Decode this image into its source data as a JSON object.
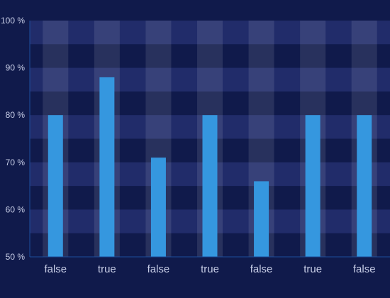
{
  "chart_data": {
    "type": "bar",
    "categories": [
      "false",
      "true",
      "false",
      "true",
      "false",
      "true",
      "false"
    ],
    "values": [
      80,
      88,
      71,
      80,
      66,
      80,
      80
    ],
    "ylim": [
      50,
      100
    ],
    "yticks": [
      50,
      60,
      70,
      80,
      90,
      100
    ],
    "ytick_suffix": " %",
    "grid": "alternating bands",
    "colors": {
      "background": "#101a4b",
      "bar": "#3597df",
      "band": "#253070",
      "column_highlight": "#ffffff",
      "axis_line": "#1c4f9e",
      "label": "#c7cde6"
    }
  }
}
